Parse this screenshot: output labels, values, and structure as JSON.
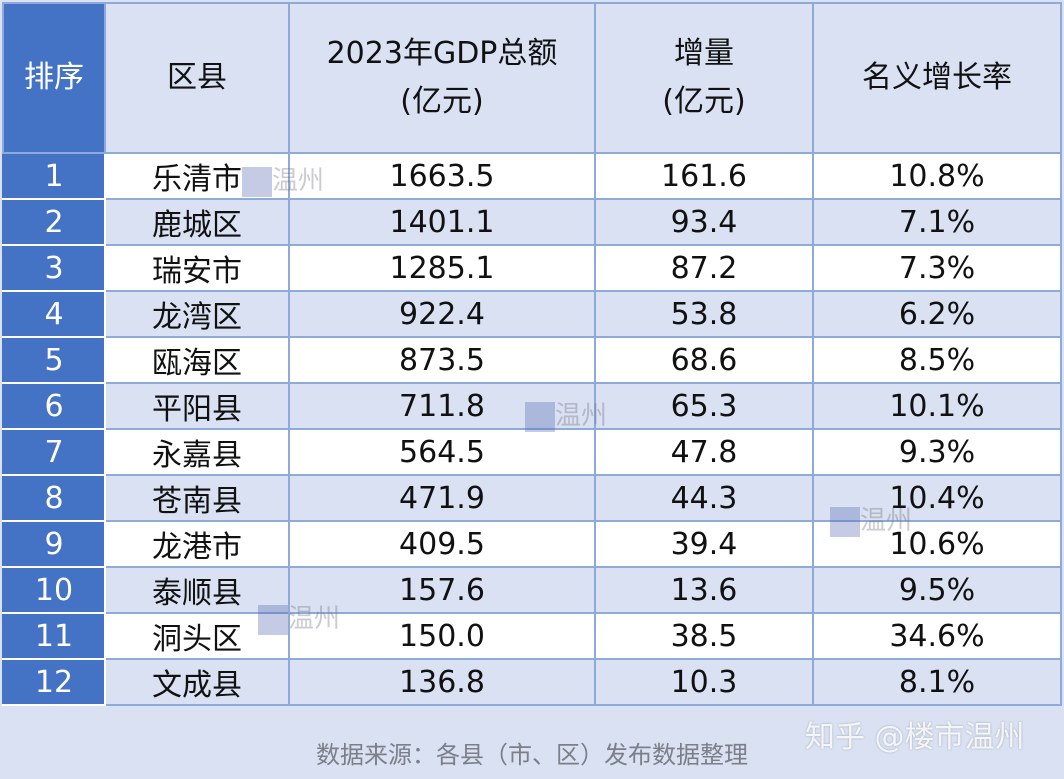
{
  "table": {
    "headers": {
      "rank": "排序",
      "district": "区县",
      "gdp_line1": "2023年GDP总额",
      "gdp_line2": "(亿元)",
      "increase_line1": "增量",
      "increase_line2": "(亿元)",
      "growth": "名义增长率"
    },
    "rows": [
      {
        "rank": "1",
        "district": "乐清市",
        "gdp": "1663.5",
        "increase": "161.6",
        "growth": "10.8%"
      },
      {
        "rank": "2",
        "district": "鹿城区",
        "gdp": "1401.1",
        "increase": "93.4",
        "growth": "7.1%"
      },
      {
        "rank": "3",
        "district": "瑞安市",
        "gdp": "1285.1",
        "increase": "87.2",
        "growth": "7.3%"
      },
      {
        "rank": "4",
        "district": "龙湾区",
        "gdp": "922.4",
        "increase": "53.8",
        "growth": "6.2%"
      },
      {
        "rank": "5",
        "district": "瓯海区",
        "gdp": "873.5",
        "increase": "68.6",
        "growth": "8.5%"
      },
      {
        "rank": "6",
        "district": "平阳县",
        "gdp": "711.8",
        "increase": "65.3",
        "growth": "10.1%"
      },
      {
        "rank": "7",
        "district": "永嘉县",
        "gdp": "564.5",
        "increase": "47.8",
        "growth": "9.3%"
      },
      {
        "rank": "8",
        "district": "苍南县",
        "gdp": "471.9",
        "increase": "44.3",
        "growth": "10.4%"
      },
      {
        "rank": "9",
        "district": "龙港市",
        "gdp": "409.5",
        "increase": "39.4",
        "growth": "10.6%"
      },
      {
        "rank": "10",
        "district": "泰顺县",
        "gdp": "157.6",
        "increase": "13.6",
        "growth": "9.5%"
      },
      {
        "rank": "11",
        "district": "洞头区",
        "gdp": "150.0",
        "increase": "38.5",
        "growth": "34.6%"
      },
      {
        "rank": "12",
        "district": "文成县",
        "gdp": "136.8",
        "increase": "10.3",
        "growth": "8.1%"
      }
    ]
  },
  "footer": {
    "source": "数据来源：各县（市、区）发布数据整理"
  },
  "watermarks": {
    "brand": "楼市温州",
    "small": "温州",
    "zhihu": "知乎 @楼市温州"
  },
  "colors": {
    "rank_column": "#4472c4",
    "header_bg": "#d9e1f2",
    "alt_row": "#d9e1f2",
    "border": "#8eaadb"
  }
}
